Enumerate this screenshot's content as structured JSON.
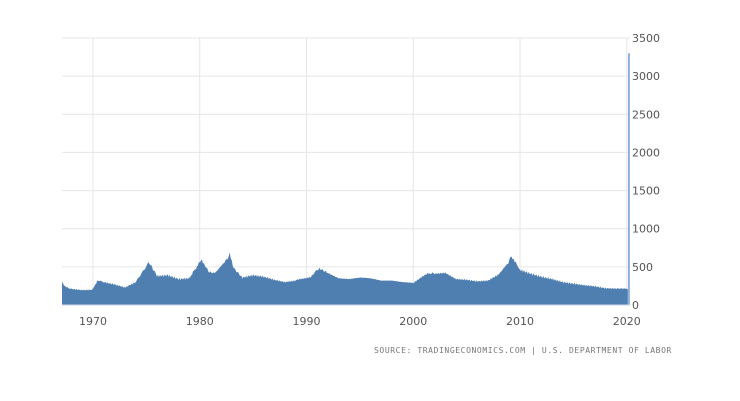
{
  "chart_data": {
    "type": "area",
    "title": "",
    "xlabel": "",
    "ylabel": "",
    "xlim": [
      1967.1,
      2020.3
    ],
    "ylim": [
      0,
      3500
    ],
    "x_ticks": [
      "1970",
      "1980",
      "1990",
      "2000",
      "2010",
      "2020"
    ],
    "y_ticks": [
      "0",
      "500",
      "1000",
      "1500",
      "2000",
      "2500",
      "3000",
      "3500"
    ],
    "y_axis_side": "right",
    "grid": true,
    "colors": {
      "fill": "#4f7fb0",
      "spike": "#8fb2d8",
      "grid": "#e6e6e6"
    },
    "series": [
      {
        "x": [
          1967.1,
          1967.5,
          1968,
          1969,
          1969.9,
          1970.5,
          1971,
          1972,
          1973,
          1974,
          1975.2,
          1975.6,
          1976,
          1977,
          1978,
          1979,
          1980.2,
          1980.6,
          1981,
          1981.5,
          1982.3,
          1982.8,
          1983.2,
          1984,
          1985,
          1986,
          1987,
          1988,
          1989,
          1990.5,
          1991.2,
          1992,
          1993,
          1994,
          1995,
          1996,
          1997,
          1998,
          1999,
          2000,
          2001.5,
          2002,
          2003,
          2004,
          2005,
          2006,
          2007,
          2008,
          2008.8,
          2009.2,
          2009.8,
          2010,
          2011,
          2012,
          2013,
          2014,
          2015,
          2016,
          2017,
          2018,
          2019,
          2020.1,
          2020.2
        ],
        "values": [
          300,
          230,
          210,
          195,
          200,
          330,
          300,
          270,
          230,
          300,
          550,
          480,
          380,
          390,
          340,
          350,
          600,
          490,
          420,
          430,
          560,
          670,
          480,
          360,
          390,
          370,
          330,
          300,
          320,
          380,
          480,
          420,
          350,
          340,
          360,
          350,
          320,
          320,
          300,
          290,
          420,
          410,
          420,
          340,
          330,
          310,
          320,
          400,
          540,
          650,
          500,
          460,
          410,
          370,
          340,
          300,
          280,
          260,
          245,
          220,
          215,
          215,
          3300
        ]
      }
    ]
  },
  "source": "SOURCE: TRADINGECONOMICS.COM | U.S. DEPARTMENT OF LABOR"
}
